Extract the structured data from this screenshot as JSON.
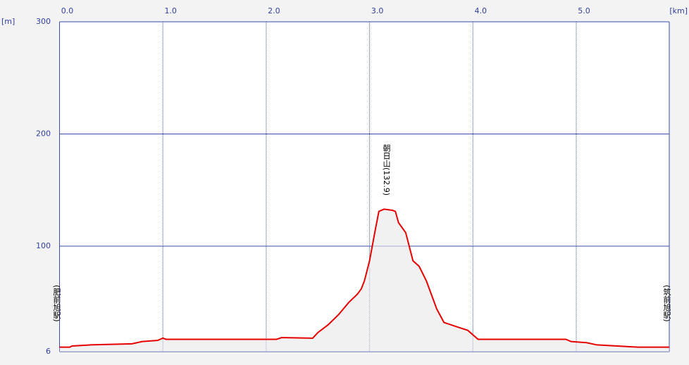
{
  "chart_data": {
    "type": "line",
    "y_axis_label": "[m]",
    "x_axis_label": "[km]",
    "annotations": [
      {
        "text": "(肥前旭駅)"
      },
      {
        "text": "朝日山(132.9)"
      },
      {
        "text": "(筑前旭駅)"
      }
    ],
    "x": [
      0,
      0.1,
      0.12,
      0.3,
      0.7,
      0.8,
      0.95,
      1.0,
      1.03,
      2.1,
      2.15,
      2.45,
      2.5,
      2.6,
      2.7,
      2.8,
      2.88,
      2.92,
      2.95,
      3.0,
      3.05,
      3.09,
      3.14,
      3.22,
      3.25,
      3.28,
      3.35,
      3.42,
      3.48,
      3.55,
      3.65,
      3.72,
      3.85,
      3.95,
      4.05,
      4.1,
      4.9,
      4.95,
      5.1,
      5.2,
      5.6,
      5.7,
      5.9
    ],
    "series": [
      {
        "color": "#e60000",
        "values": [
          10,
          10,
          11,
          12,
          13,
          15,
          16,
          18,
          17,
          17,
          18.5,
          18,
          23,
          30,
          39,
          50,
          57,
          62,
          69,
          87,
          112,
          131,
          133,
          132,
          131,
          121,
          112,
          87,
          82,
          69,
          44,
          32,
          28,
          25,
          17,
          17,
          17,
          15,
          14,
          12,
          10,
          10,
          10
        ]
      }
    ],
    "xlim": [
      0,
      5.9
    ],
    "ylim": [
      6,
      300
    ],
    "xticks": [
      {
        "value": 0,
        "label": "0.0"
      },
      {
        "value": 1,
        "label": "1.0"
      },
      {
        "value": 2,
        "label": "2.0"
      },
      {
        "value": 3,
        "label": "3.0"
      },
      {
        "value": 4,
        "label": "4.0"
      },
      {
        "value": 5,
        "label": "5.0"
      }
    ],
    "yticks": [
      6,
      100,
      200,
      300
    ],
    "grid": true
  }
}
